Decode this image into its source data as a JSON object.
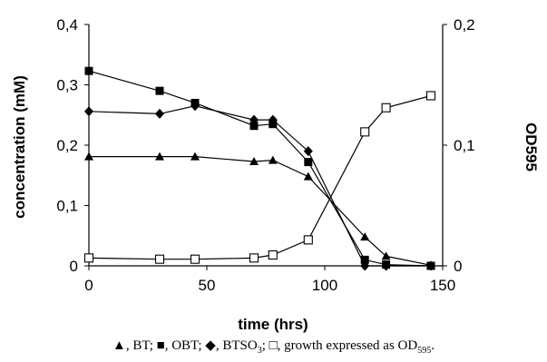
{
  "chart_data": {
    "type": "line",
    "xlabel": "time (hrs)",
    "ylabel": "concentration (mM)",
    "y2label": "OD595",
    "xlim": [
      0,
      150
    ],
    "ylim": [
      0,
      0.4
    ],
    "y2lim": [
      0,
      0.2
    ],
    "xticks": [
      "0",
      "50",
      "100",
      "150"
    ],
    "yticks": [
      "0",
      "0,1",
      "0,2",
      "0,3",
      "0,4"
    ],
    "y2ticks": [
      "0",
      "0,1",
      "0,2"
    ],
    "grid": false,
    "series": [
      {
        "name": "BT",
        "marker": "triangle",
        "axis": "left",
        "x": [
          0,
          30,
          45,
          70,
          78,
          93,
          117,
          126,
          145
        ],
        "y": [
          0.181,
          0.181,
          0.181,
          0.173,
          0.175,
          0.148,
          0.048,
          0.016,
          0.001
        ]
      },
      {
        "name": "OBT",
        "marker": "square",
        "axis": "left",
        "x": [
          0,
          30,
          45,
          70,
          78,
          93,
          117,
          126,
          145
        ],
        "y": [
          0.323,
          0.29,
          0.27,
          0.232,
          0.235,
          0.172,
          0.01,
          0.002,
          0.0
        ]
      },
      {
        "name": "BTSO3",
        "marker": "diamond",
        "axis": "left",
        "x": [
          0,
          30,
          45,
          70,
          78,
          93,
          117,
          126,
          145
        ],
        "y": [
          0.256,
          0.252,
          0.265,
          0.242,
          0.242,
          0.19,
          0.0,
          0.0,
          0.0
        ]
      },
      {
        "name": "growth expressed as OD595",
        "marker": "open-square",
        "axis": "right",
        "x": [
          0,
          30,
          45,
          70,
          78,
          93,
          117,
          126,
          145
        ],
        "y": [
          0.0065,
          0.0055,
          0.0055,
          0.0065,
          0.009,
          0.0215,
          0.111,
          0.131,
          0.141
        ]
      }
    ],
    "caption": {
      "bt": ", BT; ",
      "obt": ", OBT; ",
      "btso3": ", BTSO",
      "btso3_sub": "3",
      "growth": "; ",
      "growth_text": ", growth expressed as OD",
      "growth_sub": "595",
      "end": "."
    }
  }
}
